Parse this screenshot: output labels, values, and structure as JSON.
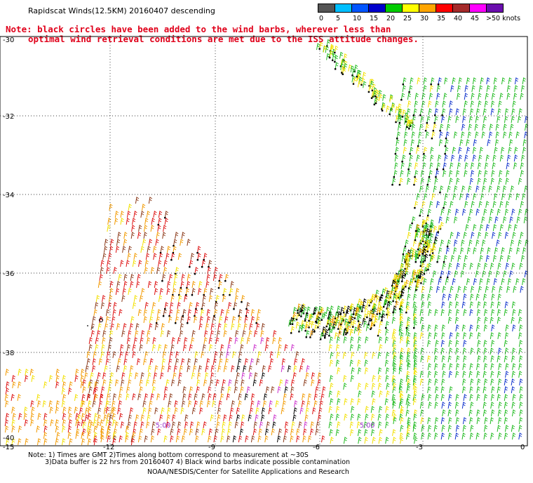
{
  "title": "Rapidscat Winds(12.5KM) 20160407 descending",
  "note": {
    "line1": "Note: black circles have been added to the wind barbs, wherever less than",
    "line2": "optimal wind retrieval conditions are met due to the ISS attitude changes."
  },
  "legend": {
    "unit": ">50 knots",
    "items": [
      {
        "label": "0",
        "color": "#555555"
      },
      {
        "label": "5",
        "color": "#00bfff"
      },
      {
        "label": "10",
        "color": "#0055ff"
      },
      {
        "label": "15",
        "color": "#0000cc"
      },
      {
        "label": "20",
        "color": "#00cc00"
      },
      {
        "label": "25",
        "color": "#ffff00"
      },
      {
        "label": "30",
        "color": "#ffa500"
      },
      {
        "label": "35",
        "color": "#ff0000"
      },
      {
        "label": "40",
        "color": "#a52a2a"
      },
      {
        "label": "45",
        "color": "#ff00ff"
      },
      {
        "label": "",
        "color": "#6a0dad"
      }
    ]
  },
  "axes": {
    "lat_labels": [
      "-30",
      "-32",
      "-34",
      "-36",
      "-38",
      "-40"
    ],
    "lon_labels": [
      "-15",
      "-12",
      "-9",
      "-6",
      "-3",
      "0"
    ]
  },
  "time_labels": [
    "5:00",
    "5:00"
  ],
  "footer": {
    "line1": "Note: 1) Times are GMT 2)Times along bottom correspond to measurement at ~30S",
    "line2": "3)Data buffer is 22 hrs from 20160407 4) Black wind barbs indicate possible contamination",
    "credit": "NOAA/NESDIS/Center for Satellite Applications and Research"
  }
}
